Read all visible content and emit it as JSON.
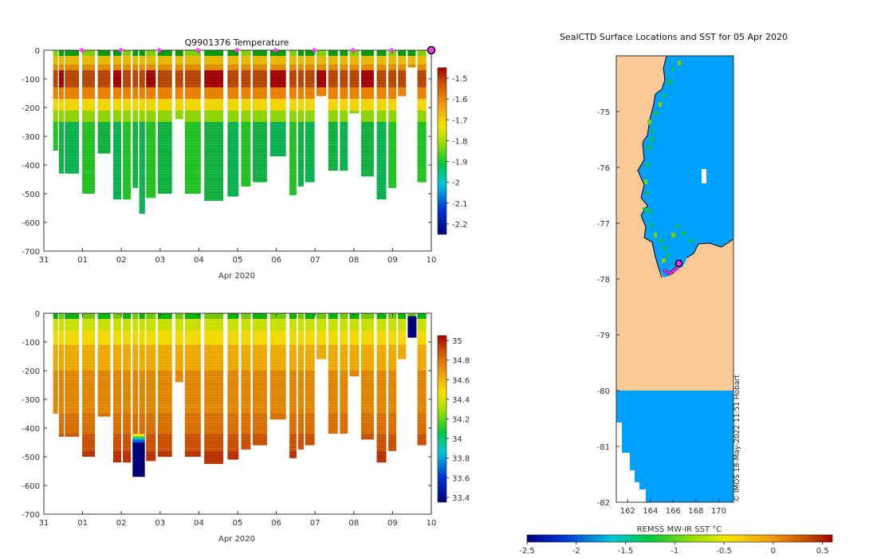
{
  "chart_data": [
    {
      "type": "heatmap",
      "title": "Q9901376  Temperature",
      "xlabel": "Apr 2020",
      "ylabel": "",
      "x_ticks": [
        "31",
        "01",
        "02",
        "03",
        "04",
        "05",
        "06",
        "07",
        "08",
        "09",
        "10"
      ],
      "xlim": [
        0,
        10
      ],
      "ylim": [
        -700,
        0
      ],
      "y_ticks": [
        "0",
        "-100",
        "-200",
        "-300",
        "-400",
        "-500",
        "-600",
        "-700"
      ],
      "colorbar_ticks": [
        "-1.5",
        "-1.6",
        "-1.7",
        "-1.8",
        "-1.9",
        "-2",
        "-2.1",
        "-2.2"
      ],
      "colorbar_range": [
        -2.25,
        -1.45
      ],
      "marker_color": "#ff33ff",
      "profile_days": [
        0.4,
        0.55,
        0.7,
        1.15,
        1.55,
        1.95,
        2.2,
        2.45,
        2.62,
        2.8,
        3.1,
        3.55,
        3.8,
        4.3,
        4.9,
        5.25,
        5.55,
        6.0,
        6.5,
        6.72,
        6.9,
        7.2,
        7.5,
        7.8,
        8.05,
        8.35,
        8.75,
        9.05,
        9.3,
        9.55,
        9.8
      ],
      "profile_max_depth": [
        350,
        430,
        430,
        500,
        360,
        520,
        520,
        480,
        570,
        515,
        500,
        240,
        500,
        525,
        510,
        475,
        460,
        370,
        505,
        475,
        460,
        160,
        420,
        420,
        220,
        440,
        520,
        480,
        160,
        60,
        460
      ],
      "markers_day": [
        0.98,
        1.98,
        2.98,
        3.98,
        4.98,
        5.98,
        6.98,
        7.98,
        8.98
      ]
    },
    {
      "type": "heatmap",
      "title": "",
      "xlabel": "Apr 2020",
      "ylabel": "",
      "x_ticks": [
        "31",
        "01",
        "02",
        "03",
        "04",
        "05",
        "06",
        "07",
        "08",
        "09",
        "10"
      ],
      "xlim": [
        0,
        10
      ],
      "ylim": [
        -700,
        0
      ],
      "y_ticks": [
        "0",
        "-100",
        "-200",
        "-300",
        "-400",
        "-500",
        "-600",
        "-700"
      ],
      "colorbar_ticks": [
        "35",
        "34.8",
        "34.6",
        "34.4",
        "34.2",
        "34",
        "33.8",
        "33.6",
        "33.4"
      ],
      "colorbar_range": [
        33.35,
        35.05
      ],
      "profile_days": [
        0.4,
        0.55,
        0.7,
        1.15,
        1.55,
        1.95,
        2.2,
        2.45,
        2.62,
        2.8,
        3.1,
        3.55,
        3.8,
        4.3,
        4.9,
        5.25,
        5.55,
        6.0,
        6.5,
        6.72,
        6.9,
        7.2,
        7.5,
        7.8,
        8.05,
        8.35,
        8.75,
        9.05,
        9.3,
        9.55,
        9.8
      ],
      "profile_max_depth": [
        350,
        430,
        430,
        500,
        360,
        520,
        520,
        480,
        570,
        515,
        500,
        240,
        500,
        525,
        510,
        475,
        460,
        370,
        505,
        475,
        460,
        160,
        420,
        420,
        220,
        440,
        520,
        480,
        160,
        60,
        460
      ]
    },
    {
      "type": "map",
      "title": "SealCTD Surface Locations and SST for 05 Apr 2020",
      "colorbar_label": "REMSS MW-IR SST °C",
      "x_ticks": [
        "162",
        "164",
        "166",
        "168",
        "170"
      ],
      "xlim": [
        161,
        171.3
      ],
      "ylim": [
        -82,
        -74
      ],
      "y_ticks": [
        "-75",
        "-76",
        "-77",
        "-78",
        "-79",
        "-80",
        "-81",
        "-82"
      ],
      "colorbar_ticks": [
        "-2.5",
        "-2",
        "-1.5",
        "-1",
        "-0.5",
        "0",
        "0.5"
      ],
      "colorbar_range": [
        -2.5,
        0.6
      ],
      "credit": "© IMOS 18-May-2022 11:51 Hobart",
      "land_color": "#fbc998",
      "ocean_color": "#00a0ff",
      "track_color": "#ff33ff",
      "track_points": [
        [
          165.3,
          -77.85
        ],
        [
          165.5,
          -77.88
        ],
        [
          165.7,
          -77.9
        ],
        [
          165.9,
          -77.88
        ],
        [
          166.0,
          -77.86
        ],
        [
          166.2,
          -77.82
        ],
        [
          166.35,
          -77.8
        ],
        [
          166.5,
          -77.75
        ],
        [
          166.6,
          -77.73
        ]
      ],
      "last_point": [
        166.5,
        -77.72
      ]
    }
  ]
}
